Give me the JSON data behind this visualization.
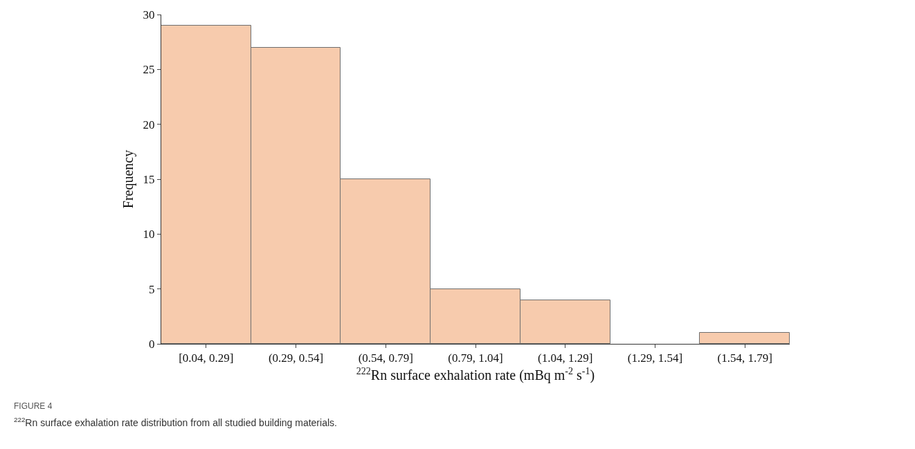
{
  "chart_data": {
    "type": "bar",
    "categories": [
      "[0.04, 0.29]",
      "(0.29, 0.54]",
      "(0.54, 0.79]",
      "(0.79, 1.04]",
      "(1.04, 1.29]",
      "(1.29, 1.54]",
      "(1.54, 1.79]"
    ],
    "values": [
      29,
      27,
      15,
      5,
      4,
      0,
      1
    ],
    "color": "#f7cbad",
    "xlabel": "$^{222}$Rn surface exhalation rate (mBq m$^{-2}$ s$^{-1}$)",
    "ylabel": "Frequency",
    "ylim": [
      0,
      30
    ],
    "yticks": [
      0,
      5,
      10,
      15,
      20,
      25,
      30
    ],
    "annotations": [
      "FIGURE 4",
      "$^{222}$Rn surface exhalation rate distribution from all studied building materials."
    ]
  }
}
